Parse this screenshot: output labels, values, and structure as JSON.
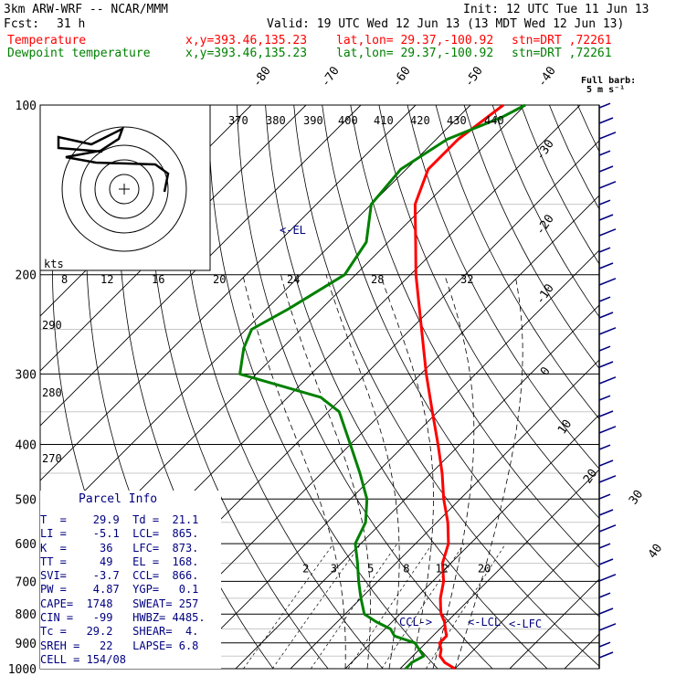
{
  "header": {
    "model": "3km ARW-WRF -- NCAR/MMM",
    "init": "Init: 12 UTC Tue 11 Jun 13",
    "fcst_label": "Fcst:",
    "fcst_value": "31 h",
    "valid": "Valid: 19 UTC Wed 12 Jun 13 (13 MDT Wed 12 Jun 13)",
    "temp_label": "Temperature",
    "dew_label": "Dewpoint temperature",
    "xy": "x,y=393.46,135.23",
    "latlon": "lat,lon= 29.37,-100.92",
    "stn": "stn=DRT ,72261",
    "barb_legend_1": "Full barb:",
    "barb_legend_2": "5 m s⁻¹"
  },
  "colors": {
    "temperature": "#ff0000",
    "dewpoint": "#008000",
    "annotation": "#000080"
  },
  "chart_data": {
    "type": "line",
    "diagram": "skew-T log-P",
    "y_axis": {
      "scale": "log",
      "range_hPa": [
        1000,
        100
      ],
      "ticks": [
        "100",
        "200",
        "300",
        "400",
        "500",
        "600",
        "700",
        "800",
        "900",
        "1000"
      ]
    },
    "isotherm_labels": [
      "-80",
      "-70",
      "-60",
      "-50",
      "-40",
      "-30",
      "-20",
      "-10",
      "0",
      "10",
      "20",
      "30",
      "40"
    ],
    "theta_labels": [
      "370",
      "380",
      "390",
      "400",
      "410",
      "420",
      "430",
      "440"
    ],
    "left_theta_labels": [
      "290",
      "280",
      "270"
    ],
    "hodograph_kts_label": "kts",
    "hodograph_ticks": [
      "8",
      "12",
      "16",
      "20",
      "24",
      "28",
      "32"
    ],
    "mixing_ratio_labels": [
      "2",
      "3",
      "5",
      "8",
      "12",
      "20"
    ],
    "series": [
      {
        "name": "Temperature",
        "color": "#ff0000",
        "points": [
          [
            1000,
            30
          ],
          [
            975,
            27
          ],
          [
            950,
            25
          ],
          [
            925,
            24
          ],
          [
            900,
            22.5
          ],
          [
            875,
            22.5
          ],
          [
            850,
            21
          ],
          [
            825,
            19.5
          ],
          [
            800,
            17.5
          ],
          [
            775,
            16
          ],
          [
            750,
            14.5
          ],
          [
            700,
            12
          ],
          [
            650,
            8.5
          ],
          [
            600,
            6
          ],
          [
            550,
            2
          ],
          [
            500,
            -3
          ],
          [
            450,
            -8
          ],
          [
            400,
            -14
          ],
          [
            350,
            -21
          ],
          [
            300,
            -29
          ],
          [
            250,
            -38
          ],
          [
            200,
            -49
          ],
          [
            175,
            -55
          ],
          [
            150,
            -62
          ],
          [
            130,
            -66
          ],
          [
            115,
            -66
          ],
          [
            100,
            -64
          ]
        ]
      },
      {
        "name": "Dewpoint temperature",
        "color": "#008000",
        "points": [
          [
            1000,
            21
          ],
          [
            975,
            21
          ],
          [
            950,
            22
          ],
          [
            925,
            20
          ],
          [
            900,
            18
          ],
          [
            875,
            13
          ],
          [
            850,
            11
          ],
          [
            825,
            7
          ],
          [
            800,
            3.5
          ],
          [
            750,
            0
          ],
          [
            700,
            -3.5
          ],
          [
            650,
            -7
          ],
          [
            600,
            -11
          ],
          [
            550,
            -13
          ],
          [
            500,
            -17
          ],
          [
            450,
            -23
          ],
          [
            400,
            -30
          ],
          [
            350,
            -38
          ],
          [
            330,
            -44
          ],
          [
            300,
            -63
          ],
          [
            270,
            -67
          ],
          [
            250,
            -69
          ],
          [
            230,
            -66
          ],
          [
            200,
            -62
          ],
          [
            175,
            -64
          ],
          [
            150,
            -70
          ],
          [
            130,
            -71
          ],
          [
            115,
            -68
          ],
          [
            105,
            -62
          ],
          [
            100,
            -60
          ]
        ]
      }
    ],
    "annotations": [
      "<-EL",
      "<-LCL",
      "<-LFC",
      "CCL->"
    ]
  },
  "parcel_info": {
    "title": "Parcel Info",
    "rows": [
      "T  =    29.9  Td =  21.1",
      "LI =    -5.1  LCL=  865.",
      "K  =     36   LFC=  873.",
      "TT =     49   EL =  168.",
      "SVI=    -3.7  CCL=  866.",
      "PW =    4.87  YGP=   0.1",
      "CAPE=  1748   SWEAT= 257",
      "CIN =   -99   HWBZ= 4485.",
      "Tc =   29.2   SHEAR=  4.",
      "SREH =   22   LAPSE= 6.8",
      "CELL = 154/08"
    ]
  }
}
